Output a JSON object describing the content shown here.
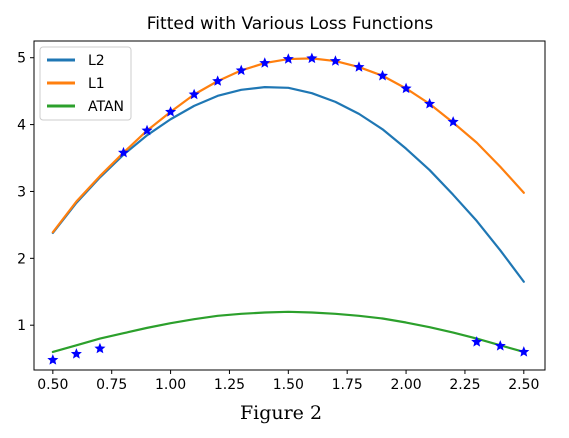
{
  "chart_data": {
    "type": "line",
    "title": "Fitted with Various Loss Functions",
    "caption": "Figure 2",
    "xlabel": "",
    "ylabel": "",
    "xlim": [
      0.42,
      2.59
    ],
    "ylim": [
      0.33,
      5.25
    ],
    "xticks": [
      0.5,
      0.75,
      1.0,
      1.25,
      1.5,
      1.75,
      2.0,
      2.25,
      2.5
    ],
    "xtick_labels": [
      "0.50",
      "0.75",
      "1.00",
      "1.25",
      "1.50",
      "1.75",
      "2.00",
      "2.25",
      "2.50"
    ],
    "yticks": [
      1,
      2,
      3,
      4,
      5
    ],
    "ytick_labels": [
      "1",
      "2",
      "3",
      "4",
      "5"
    ],
    "grid": false,
    "legend_position": "top-left",
    "series": [
      {
        "name": "L2",
        "color": "#1f77b4",
        "x": [
          0.5,
          0.6,
          0.7,
          0.8,
          0.9,
          1.0,
          1.1,
          1.2,
          1.3,
          1.4,
          1.5,
          1.6,
          1.7,
          1.8,
          1.9,
          2.0,
          2.1,
          2.2,
          2.3,
          2.4,
          2.5
        ],
        "y": [
          2.38,
          2.83,
          3.21,
          3.55,
          3.84,
          4.08,
          4.28,
          4.43,
          4.52,
          4.56,
          4.55,
          4.47,
          4.34,
          4.16,
          3.93,
          3.64,
          3.32,
          2.95,
          2.56,
          2.12,
          1.65
        ]
      },
      {
        "name": "L1",
        "color": "#ff7f0e",
        "x": [
          0.5,
          0.6,
          0.7,
          0.8,
          0.9,
          1.0,
          1.1,
          1.2,
          1.3,
          1.4,
          1.5,
          1.6,
          1.7,
          1.8,
          1.9,
          2.0,
          2.1,
          2.2,
          2.3,
          2.4,
          2.5
        ],
        "y": [
          2.39,
          2.85,
          3.23,
          3.58,
          3.91,
          4.19,
          4.45,
          4.65,
          4.81,
          4.92,
          4.98,
          4.99,
          4.95,
          4.86,
          4.73,
          4.54,
          4.31,
          4.03,
          3.73,
          3.37,
          2.98
        ]
      },
      {
        "name": "ATAN",
        "color": "#2ca02c",
        "x": [
          0.5,
          0.6,
          0.7,
          0.8,
          0.9,
          1.0,
          1.1,
          1.2,
          1.3,
          1.4,
          1.5,
          1.6,
          1.7,
          1.8,
          1.9,
          2.0,
          2.1,
          2.2,
          2.3,
          2.4,
          2.5
        ],
        "y": [
          0.6,
          0.7,
          0.8,
          0.88,
          0.96,
          1.03,
          1.09,
          1.14,
          1.17,
          1.19,
          1.2,
          1.19,
          1.17,
          1.14,
          1.1,
          1.04,
          0.97,
          0.89,
          0.8,
          0.7,
          0.6
        ]
      }
    ],
    "scatter": {
      "marker": "star",
      "color": "#0000ff",
      "points": [
        [
          0.5,
          0.48
        ],
        [
          0.6,
          0.57
        ],
        [
          0.7,
          0.65
        ],
        [
          0.8,
          3.58
        ],
        [
          0.9,
          3.91
        ],
        [
          1.0,
          4.19
        ],
        [
          1.1,
          4.45
        ],
        [
          1.2,
          4.65
        ],
        [
          1.3,
          4.81
        ],
        [
          1.4,
          4.92
        ],
        [
          1.5,
          4.98
        ],
        [
          1.6,
          4.99
        ],
        [
          1.7,
          4.95
        ],
        [
          1.8,
          4.86
        ],
        [
          1.9,
          4.73
        ],
        [
          2.0,
          4.54
        ],
        [
          2.1,
          4.31
        ],
        [
          2.2,
          4.04
        ],
        [
          2.3,
          0.75
        ],
        [
          2.4,
          0.69
        ],
        [
          2.5,
          0.6
        ]
      ]
    }
  }
}
